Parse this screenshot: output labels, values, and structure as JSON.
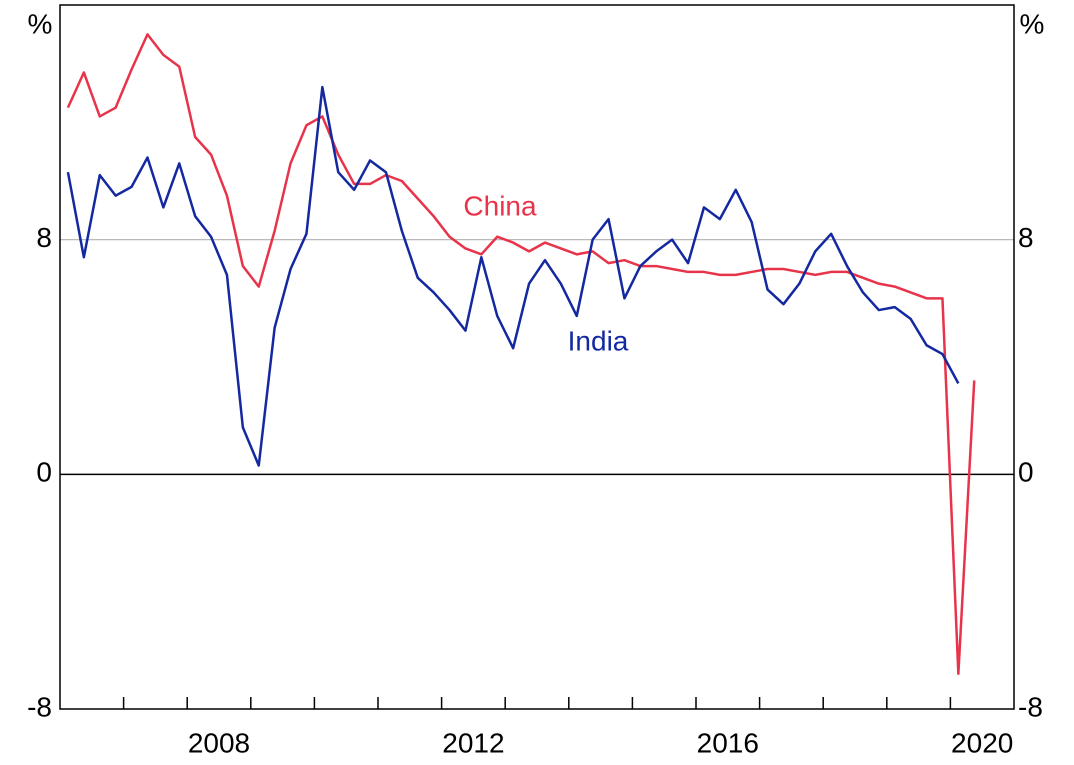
{
  "chart_data": {
    "type": "line",
    "x": [
      2006.125,
      2006.375,
      2006.625,
      2006.875,
      2007.125,
      2007.375,
      2007.625,
      2007.875,
      2008.125,
      2008.375,
      2008.625,
      2008.875,
      2009.125,
      2009.375,
      2009.625,
      2009.875,
      2010.125,
      2010.375,
      2010.625,
      2010.875,
      2011.125,
      2011.375,
      2011.625,
      2011.875,
      2012.125,
      2012.375,
      2012.625,
      2012.875,
      2013.125,
      2013.375,
      2013.625,
      2013.875,
      2014.125,
      2014.375,
      2014.625,
      2014.875,
      2015.125,
      2015.375,
      2015.625,
      2015.875,
      2016.125,
      2016.375,
      2016.625,
      2016.875,
      2017.125,
      2017.375,
      2017.625,
      2017.875,
      2018.125,
      2018.375,
      2018.625,
      2018.875,
      2019.125,
      2019.375,
      2019.625,
      2019.875,
      2020.125,
      2020.375
    ],
    "series": [
      {
        "name": "China",
        "color": "#e8344a",
        "values": [
          12.5,
          13.7,
          12.2,
          12.5,
          13.8,
          15.0,
          14.3,
          13.9,
          11.5,
          10.9,
          9.5,
          7.1,
          6.4,
          8.3,
          10.6,
          11.9,
          12.2,
          10.9,
          9.9,
          9.9,
          10.2,
          10.0,
          9.4,
          8.8,
          8.1,
          7.7,
          7.5,
          8.1,
          7.9,
          7.6,
          7.9,
          7.7,
          7.5,
          7.6,
          7.2,
          7.3,
          7.1,
          7.1,
          7.0,
          6.9,
          6.9,
          6.8,
          6.8,
          6.9,
          7.0,
          7.0,
          6.9,
          6.8,
          6.9,
          6.9,
          6.7,
          6.5,
          6.4,
          6.2,
          6.0,
          6.0,
          -6.8,
          3.2
        ]
      },
      {
        "name": "India",
        "color": "#1428a0",
        "values": [
          10.3,
          7.4,
          10.2,
          9.5,
          9.8,
          10.8,
          9.1,
          10.6,
          8.8,
          8.1,
          6.8,
          1.6,
          0.3,
          5.0,
          7.0,
          8.2,
          13.2,
          10.3,
          9.7,
          10.7,
          10.3,
          8.3,
          6.7,
          6.2,
          5.6,
          4.9,
          7.4,
          5.4,
          4.3,
          6.5,
          7.3,
          6.5,
          5.4,
          8.0,
          8.7,
          6.0,
          7.1,
          7.6,
          8.0,
          7.2,
          9.1,
          8.7,
          9.7,
          8.6,
          6.3,
          5.8,
          6.5,
          7.6,
          8.2,
          7.1,
          6.2,
          5.6,
          5.7,
          5.3,
          4.4,
          4.1,
          3.1,
          null
        ]
      }
    ],
    "y_unit": "%",
    "y2_unit": "%",
    "xlim": [
      2006,
      2021
    ],
    "xticks": [
      2007,
      2008,
      2009,
      2010,
      2011,
      2012,
      2013,
      2014,
      2015,
      2016,
      2017,
      2018,
      2019,
      2020
    ],
    "xtick_labels": [
      {
        "value": 2008.5,
        "label": "2008"
      },
      {
        "value": 2012.5,
        "label": "2012"
      },
      {
        "value": 2016.5,
        "label": "2016"
      },
      {
        "value": 2020.5,
        "label": "2020"
      }
    ],
    "ylim": [
      -8,
      16
    ],
    "yticks": [
      -8,
      0,
      8
    ],
    "y2lim": [
      -8,
      16
    ],
    "y2ticks": [
      -8,
      0,
      8
    ],
    "grid": true
  }
}
